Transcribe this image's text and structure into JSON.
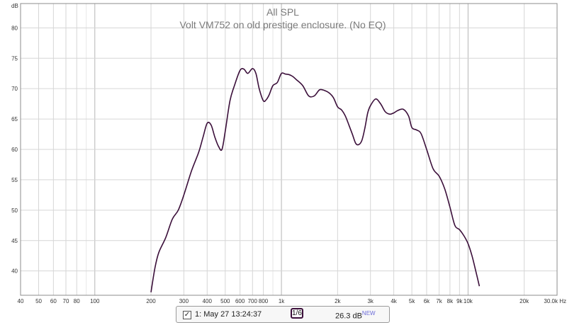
{
  "chart_data": {
    "type": "line",
    "title": "All SPL",
    "subtitle": "Volt VM752 on old prestige enclosure. (No EQ)",
    "ylabel": "dB",
    "x_scale": "log",
    "xlim": [
      40,
      30000
    ],
    "ylim": [
      36,
      84
    ],
    "grid": true,
    "y_ticks": [
      40,
      45,
      50,
      55,
      60,
      65,
      70,
      75,
      80
    ],
    "y_tick_labels": [
      "40",
      "45",
      "50",
      "55",
      "60",
      "65",
      "70",
      "75",
      "80"
    ],
    "x_ticks": [
      40,
      50,
      60,
      70,
      80,
      100,
      200,
      300,
      400,
      500,
      600,
      700,
      800,
      1000,
      2000,
      3000,
      4000,
      5000,
      6000,
      7000,
      8000,
      9000,
      10000,
      20000,
      30000
    ],
    "x_tick_labels": [
      "40",
      "50",
      "60",
      "70",
      "80",
      "100",
      "200",
      "300",
      "400",
      "500",
      "600",
      "700",
      "800",
      "1k",
      "2k",
      "3k",
      "4k",
      "5k",
      "6k",
      "7k",
      "8k",
      "9k",
      "10k",
      "20k",
      "30.0k Hz"
    ],
    "series": [
      {
        "color": "#3b0f3a",
        "x": [
          200,
          210,
          220,
          240,
          260,
          280,
          300,
          330,
          360,
          380,
          400,
          420,
          440,
          460,
          480,
          500,
          530,
          560,
          600,
          630,
          660,
          700,
          730,
          760,
          800,
          830,
          860,
          900,
          950,
          1000,
          1050,
          1100,
          1150,
          1200,
          1300,
          1400,
          1500,
          1600,
          1700,
          1800,
          1900,
          2000,
          2100,
          2200,
          2300,
          2400,
          2500,
          2600,
          2700,
          2800,
          2900,
          3000,
          3200,
          3400,
          3600,
          3800,
          4000,
          4200,
          4500,
          4800,
          5000,
          5300,
          5600,
          6000,
          6500,
          7000,
          7500,
          8000,
          8500,
          9000,
          9500,
          10000,
          10500,
          11000,
          11500
        ],
        "values": [
          36.5,
          40.5,
          43.0,
          45.5,
          48.5,
          50.0,
          52.5,
          56.5,
          59.5,
          62.0,
          64.3,
          64.0,
          62.0,
          60.5,
          60.0,
          63.0,
          68.0,
          70.5,
          73.0,
          73.2,
          72.5,
          73.3,
          72.5,
          70.0,
          68.0,
          68.2,
          69.0,
          70.5,
          71.0,
          72.5,
          72.4,
          72.3,
          72.0,
          71.5,
          70.5,
          68.8,
          68.8,
          69.8,
          69.7,
          69.3,
          68.5,
          67.0,
          66.5,
          65.5,
          64.0,
          62.5,
          61.0,
          60.8,
          61.5,
          63.5,
          66.0,
          67.2,
          68.3,
          67.5,
          66.2,
          65.8,
          66.0,
          66.4,
          66.6,
          65.5,
          63.6,
          63.2,
          62.6,
          60.0,
          56.8,
          55.6,
          53.5,
          50.5,
          47.5,
          46.8,
          45.8,
          44.5,
          42.5,
          40.0,
          37.5
        ]
      }
    ]
  },
  "legend": {
    "checked_mark": "✓",
    "measurement_label": "1: May 27 13:24:37",
    "smoothing": "1/6",
    "spl_value": "26.3 dB",
    "new_tag": "NEW"
  }
}
